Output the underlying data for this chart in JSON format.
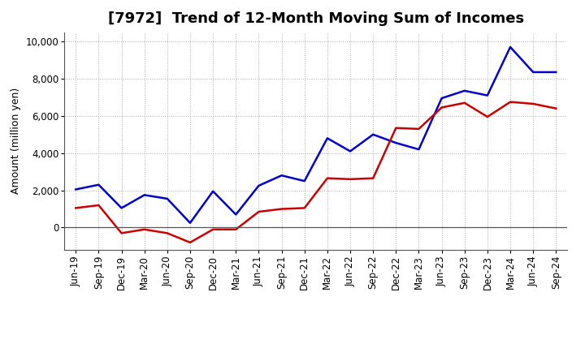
{
  "title": "[7972]  Trend of 12-Month Moving Sum of Incomes",
  "ylabel": "Amount (million yen)",
  "background_color": "#ffffff",
  "plot_bg_color": "#ffffff",
  "grid_color": "#aaaaaa",
  "x_labels": [
    "Jun-19",
    "Sep-19",
    "Dec-19",
    "Mar-20",
    "Jun-20",
    "Sep-20",
    "Dec-20",
    "Mar-21",
    "Jun-21",
    "Sep-21",
    "Dec-21",
    "Mar-22",
    "Jun-22",
    "Sep-22",
    "Dec-22",
    "Mar-23",
    "Jun-23",
    "Sep-23",
    "Dec-23",
    "Mar-24",
    "Jun-24",
    "Sep-24"
  ],
  "ordinary_income": [
    2050,
    2300,
    1050,
    1750,
    1550,
    250,
    1950,
    700,
    2250,
    2800,
    2500,
    4800,
    4100,
    5000,
    4550,
    4200,
    6950,
    7350,
    7100,
    9700,
    8350,
    8350
  ],
  "net_income": [
    1050,
    1200,
    -300,
    -100,
    -300,
    -800,
    -100,
    -100,
    850,
    1000,
    1050,
    2650,
    2600,
    2650,
    5350,
    5300,
    6450,
    6700,
    5950,
    6750,
    6650,
    6400
  ],
  "ylim_min": -1200,
  "ylim_max": 10500,
  "ytick_vals": [
    0,
    2000,
    4000,
    6000,
    8000,
    10000
  ],
  "line_color_ordinary": "#0000cc",
  "line_color_net": "#cc0000",
  "title_fontsize": 13,
  "axis_label_fontsize": 9,
  "tick_fontsize": 8.5
}
